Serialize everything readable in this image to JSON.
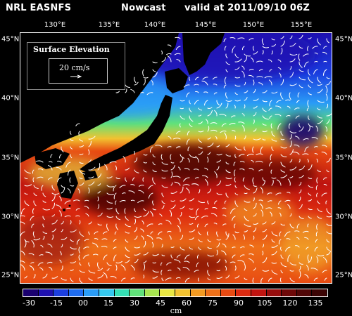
{
  "header": {
    "model": "NRL EASNFS",
    "kind": "Nowcast",
    "valid": "valid at 2011/09/10 06Z"
  },
  "axes": {
    "lon_ticks": [
      "130°E",
      "135°E",
      "140°E",
      "145°E",
      "150°E",
      "155°E"
    ],
    "lat_ticks": [
      "45°N",
      "40°N",
      "35°N",
      "30°N",
      "25°N"
    ]
  },
  "legend": {
    "title": "Surface Elevation",
    "scale_label": "20 cm/s"
  },
  "colorbar": {
    "labels": [
      "-30",
      "-15",
      "00",
      "15",
      "30",
      "45",
      "60",
      "75",
      "90",
      "105",
      "120",
      "135"
    ],
    "unit": "cm",
    "colors": [
      "#1a0070",
      "#1e10b0",
      "#1b3ee0",
      "#1e6cf0",
      "#2a9cf6",
      "#35c8ef",
      "#34e0b5",
      "#60e27a",
      "#a8e650",
      "#e8e642",
      "#f2c230",
      "#f29a22",
      "#ee7018",
      "#e84a12",
      "#dd2a10",
      "#c01410",
      "#960c0c",
      "#6e0808",
      "#500606",
      "#3c0505"
    ]
  },
  "map": {
    "land_color": "#000000",
    "ocean_cold": "#1b3ee0",
    "ocean_warm": "#dd2a10",
    "vector_color": "#ffffff"
  }
}
